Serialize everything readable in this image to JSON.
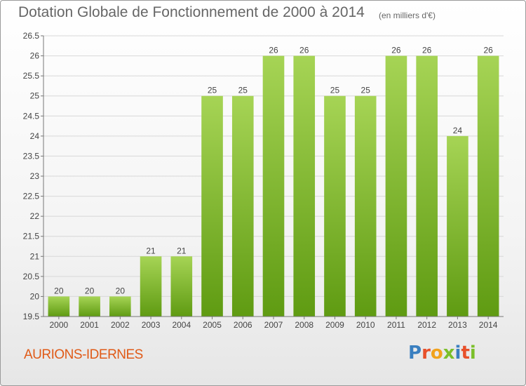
{
  "title": "Dotation Globale de Fonctionnement de 2000 à 2014",
  "unit_note": "(en milliers d'€)",
  "commune": "AURIONS-IDERNES",
  "brand": {
    "letters": [
      "P",
      "r",
      "o",
      "x",
      "i",
      "t",
      "i"
    ],
    "colors": [
      "#3a7fc0",
      "#e8502a",
      "#f1a21c",
      "#7bbf2a",
      "#3a7fc0",
      "#e8502a",
      "#7bbf2a"
    ]
  },
  "colors": {
    "bar_top": "#a6d455",
    "bar_bottom": "#5f9b12",
    "grid": "#d8d8d8",
    "axis": "#777777",
    "commune_text": "#e05a17"
  },
  "chart_data": {
    "type": "bar",
    "title": "Dotation Globale de Fonctionnement de 2000 à 2014",
    "xlabel": "",
    "ylabel": "",
    "categories": [
      "2000",
      "2001",
      "2002",
      "2003",
      "2004",
      "2005",
      "2006",
      "2007",
      "2008",
      "2009",
      "2010",
      "2011",
      "2012",
      "2013",
      "2014"
    ],
    "values": [
      20,
      20,
      20,
      21,
      21,
      25,
      25,
      26,
      26,
      25,
      25,
      26,
      26,
      24,
      26
    ],
    "data_labels": [
      "20",
      "20",
      "20",
      "21",
      "21",
      "25",
      "25",
      "26",
      "26",
      "25",
      "25",
      "26",
      "26",
      "24",
      "26"
    ],
    "ylim": [
      19.5,
      26.5
    ],
    "yticks": [
      19.5,
      20,
      20.5,
      21,
      21.5,
      22,
      22.5,
      23,
      23.5,
      24,
      24.5,
      25,
      25.5,
      26,
      26.5
    ],
    "ytick_labels": [
      "19.5",
      "20",
      "20.5",
      "21",
      "21.5",
      "22",
      "22.5",
      "23",
      "23.5",
      "24",
      "24.5",
      "25",
      "25.5",
      "26",
      "26.5"
    ],
    "grid": true,
    "legend": "none"
  }
}
